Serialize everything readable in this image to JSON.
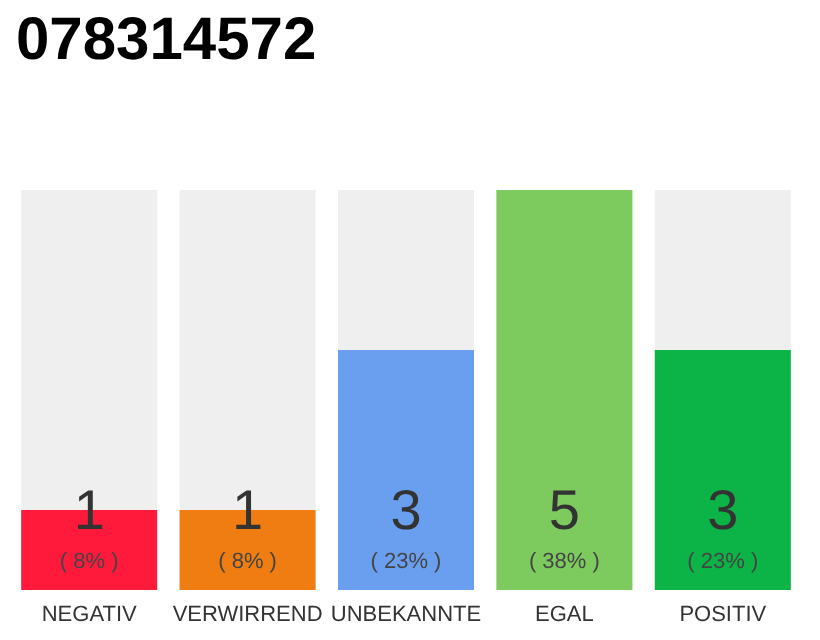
{
  "chart_data": {
    "type": "bar",
    "title": "078314572",
    "categories": [
      "NEGATIV",
      "VERWIRREND",
      "UNBEKANNTE",
      "EGAL",
      "POSITIV"
    ],
    "values": [
      1,
      1,
      3,
      5,
      3
    ],
    "colors": [
      "#ff1a3c",
      "#f07d12",
      "#6a9ff0",
      "#7dcb5e",
      "#0cb346"
    ],
    "ylim": [
      0,
      5
    ],
    "data_labels": true,
    "annotations": [
      "( 8% )",
      "( 8% )",
      "( 23% )",
      "( 38% )",
      "( 23% )"
    ]
  }
}
